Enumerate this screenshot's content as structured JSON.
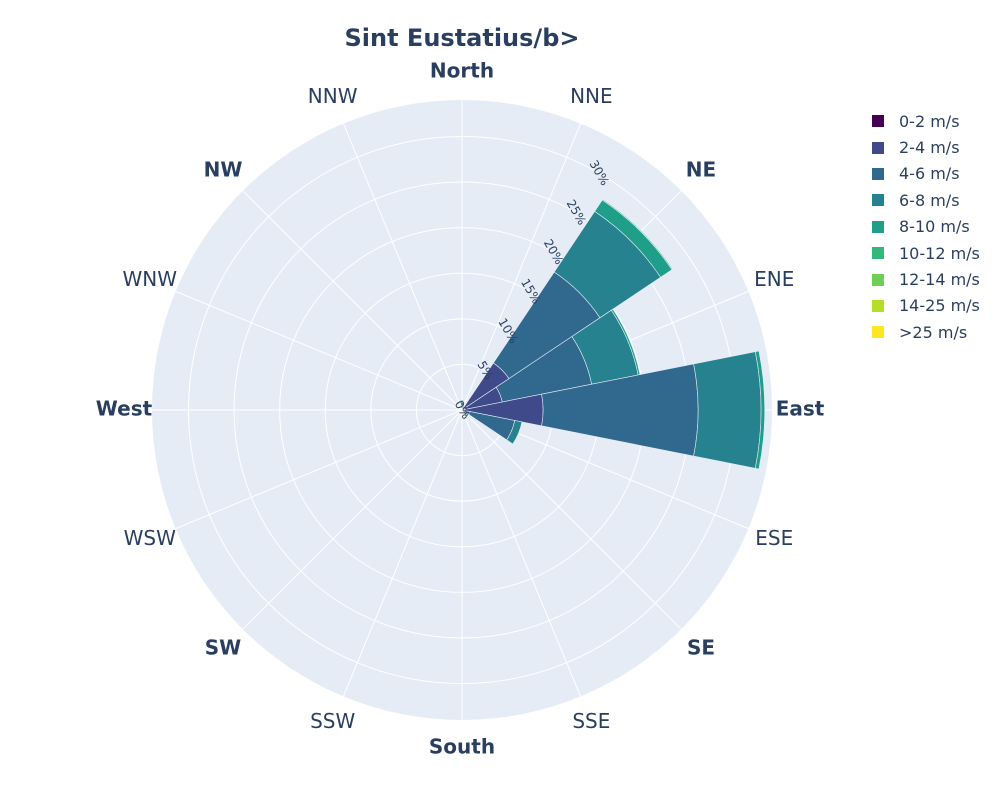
{
  "chart_data": {
    "type": "barpolar",
    "title": "Sint Eustatius/b>",
    "directions": [
      "North",
      "NNE",
      "NE",
      "ENE",
      "East",
      "ESE",
      "SE",
      "SSE",
      "South",
      "SSW",
      "SW",
      "WSW",
      "West",
      "WNW",
      "NW",
      "NNW"
    ],
    "bold_directions": [
      "North",
      "NE",
      "East",
      "SE",
      "South",
      "SW",
      "West",
      "NW"
    ],
    "radial_ticks": [
      0,
      5,
      10,
      15,
      20,
      25,
      30
    ],
    "radial_tick_labels": [
      "0%",
      "5%",
      "10%",
      "15%",
      "20%",
      "25%",
      "30%"
    ],
    "radial_max": 34,
    "tick_angle_deg": 30,
    "legend_placement": "right",
    "series": [
      {
        "name": "0-2 m/s",
        "color": "#440154",
        "values": [
          0.1,
          0,
          0.2,
          0,
          0.2,
          0.1,
          0,
          0,
          0,
          0,
          0,
          0,
          0,
          0,
          0,
          0
        ]
      },
      {
        "name": "2-4 m/s",
        "color": "#3e4a89",
        "values": [
          0.4,
          0.2,
          6.0,
          4.5,
          8.7,
          0.8,
          0.2,
          0.1,
          0,
          0,
          0,
          0,
          0,
          0,
          0,
          0
        ]
      },
      {
        "name": "4-6 m/s",
        "color": "#31688e",
        "values": [
          0.3,
          0.2,
          12.0,
          10.0,
          17.0,
          5.0,
          0.5,
          0.1,
          0,
          0,
          0,
          0,
          0,
          0,
          0,
          0
        ]
      },
      {
        "name": "6-8 m/s",
        "color": "#26828e",
        "values": [
          0.2,
          0.1,
          8.0,
          5.2,
          6.9,
          0.8,
          0.2,
          0,
          0,
          0,
          0,
          0,
          0,
          0,
          0,
          0
        ]
      },
      {
        "name": "8-10 m/s",
        "color": "#1f9e89",
        "values": [
          0.1,
          0,
          1.5,
          0.2,
          0.4,
          0,
          0,
          0,
          0,
          0,
          0,
          0,
          0,
          0,
          0,
          0
        ]
      },
      {
        "name": "10-12 m/s",
        "color": "#35b779",
        "values": [
          0,
          0,
          0.1,
          0,
          0,
          0,
          0,
          0,
          0,
          0,
          0,
          0,
          0,
          0,
          0,
          0
        ]
      },
      {
        "name": "12-14 m/s",
        "color": "#6ece58",
        "values": [
          0,
          0,
          0,
          0,
          0,
          0,
          0,
          0,
          0,
          0,
          0,
          0,
          0,
          0,
          0,
          0
        ]
      },
      {
        "name": "14-25 m/s",
        "color": "#b5de2b",
        "values": [
          0,
          0,
          0,
          0,
          0,
          0,
          0,
          0,
          0,
          0,
          0,
          0,
          0,
          0,
          0,
          0
        ]
      },
      {
        "name": ">25 m/s",
        "color": "#fde725",
        "values": [
          0,
          0,
          0,
          0,
          0,
          0,
          0,
          0,
          0,
          0,
          0,
          0,
          0,
          0,
          0,
          0
        ]
      }
    ]
  }
}
